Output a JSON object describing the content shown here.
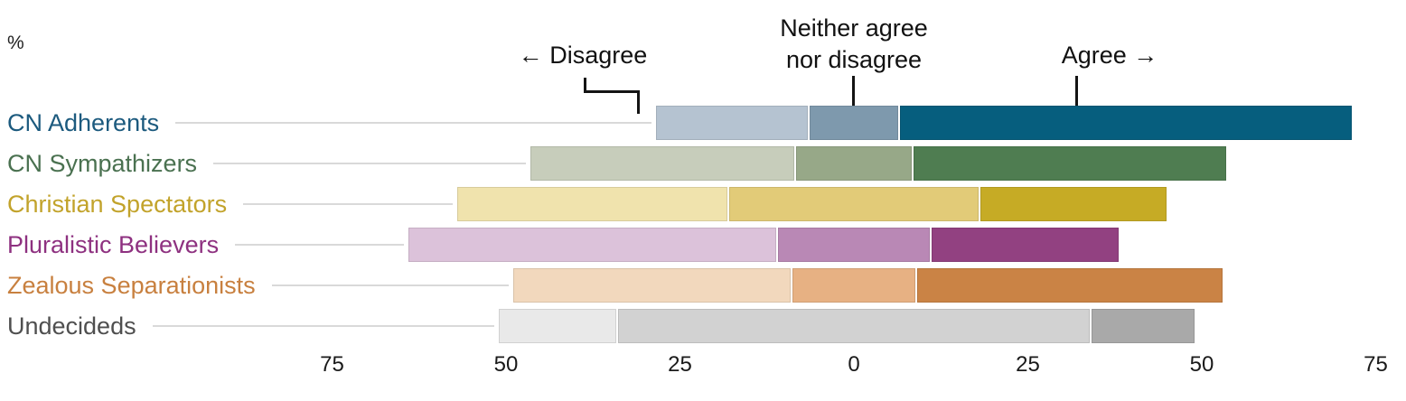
{
  "percent_label": "%",
  "header": {
    "disagree_label": "← Disagree",
    "neither_label_line1": "Neither agree",
    "neither_label_line2": "nor disagree",
    "agree_label": "Agree →"
  },
  "chart_data": {
    "type": "diverging_stacked_bar",
    "orientation": "horizontal",
    "unit": "%",
    "title": "",
    "xlabel": "%",
    "ylabel": "",
    "grid": false,
    "legend_position": "top-annotations",
    "categories": [
      "CN Adherents",
      "CN Sympathizers",
      "Christian Spectators",
      "Pluralistic Believers",
      "Zealous Separationists",
      "Undecideds"
    ],
    "series": [
      {
        "name": "Disagree",
        "values": [
          22,
          38,
          39,
          53,
          40,
          17
        ]
      },
      {
        "name": "Neither agree nor disagree",
        "values": [
          13,
          17,
          36,
          22,
          18,
          68
        ]
      },
      {
        "name": "Agree",
        "values": [
          65,
          45,
          27,
          27,
          44,
          15
        ]
      }
    ],
    "category_styles": [
      {
        "label_color": "#1c5a7e",
        "segment_colors": [
          "#b5c3d1",
          "#7e99ad",
          "#065e7e"
        ]
      },
      {
        "label_color": "#4a7150",
        "segment_colors": [
          "#c7cdbb",
          "#97a888",
          "#4f7d51"
        ]
      },
      {
        "label_color": "#c2a32b",
        "segment_colors": [
          "#f0e3ad",
          "#e2cb78",
          "#c6ab25"
        ]
      },
      {
        "label_color": "#8e3180",
        "segment_colors": [
          "#dcc2da",
          "#b988b5",
          "#924181"
        ]
      },
      {
        "label_color": "#c8803f",
        "segment_colors": [
          "#f2d8bd",
          "#e7b183",
          "#ca8345"
        ]
      },
      {
        "label_color": "#4f4f4f",
        "segment_colors": [
          "#e9e9e9",
          "#d2d2d2",
          "#a9a9a9"
        ]
      }
    ],
    "x_axis": {
      "xlim": [
        -75,
        75
      ],
      "ticks": [
        {
          "label": "75",
          "value": -75
        },
        {
          "label": "50",
          "value": -50
        },
        {
          "label": "25",
          "value": -25
        },
        {
          "label": "0",
          "value": 0
        },
        {
          "label": "25",
          "value": 25
        },
        {
          "label": "50",
          "value": 50
        },
        {
          "label": "75",
          "value": 75
        }
      ]
    }
  },
  "colors": {
    "annotation_line": "#141414",
    "leader_line": "#d9d9d9",
    "axis_text": "#1a1a1a",
    "background": "#ffffff"
  }
}
